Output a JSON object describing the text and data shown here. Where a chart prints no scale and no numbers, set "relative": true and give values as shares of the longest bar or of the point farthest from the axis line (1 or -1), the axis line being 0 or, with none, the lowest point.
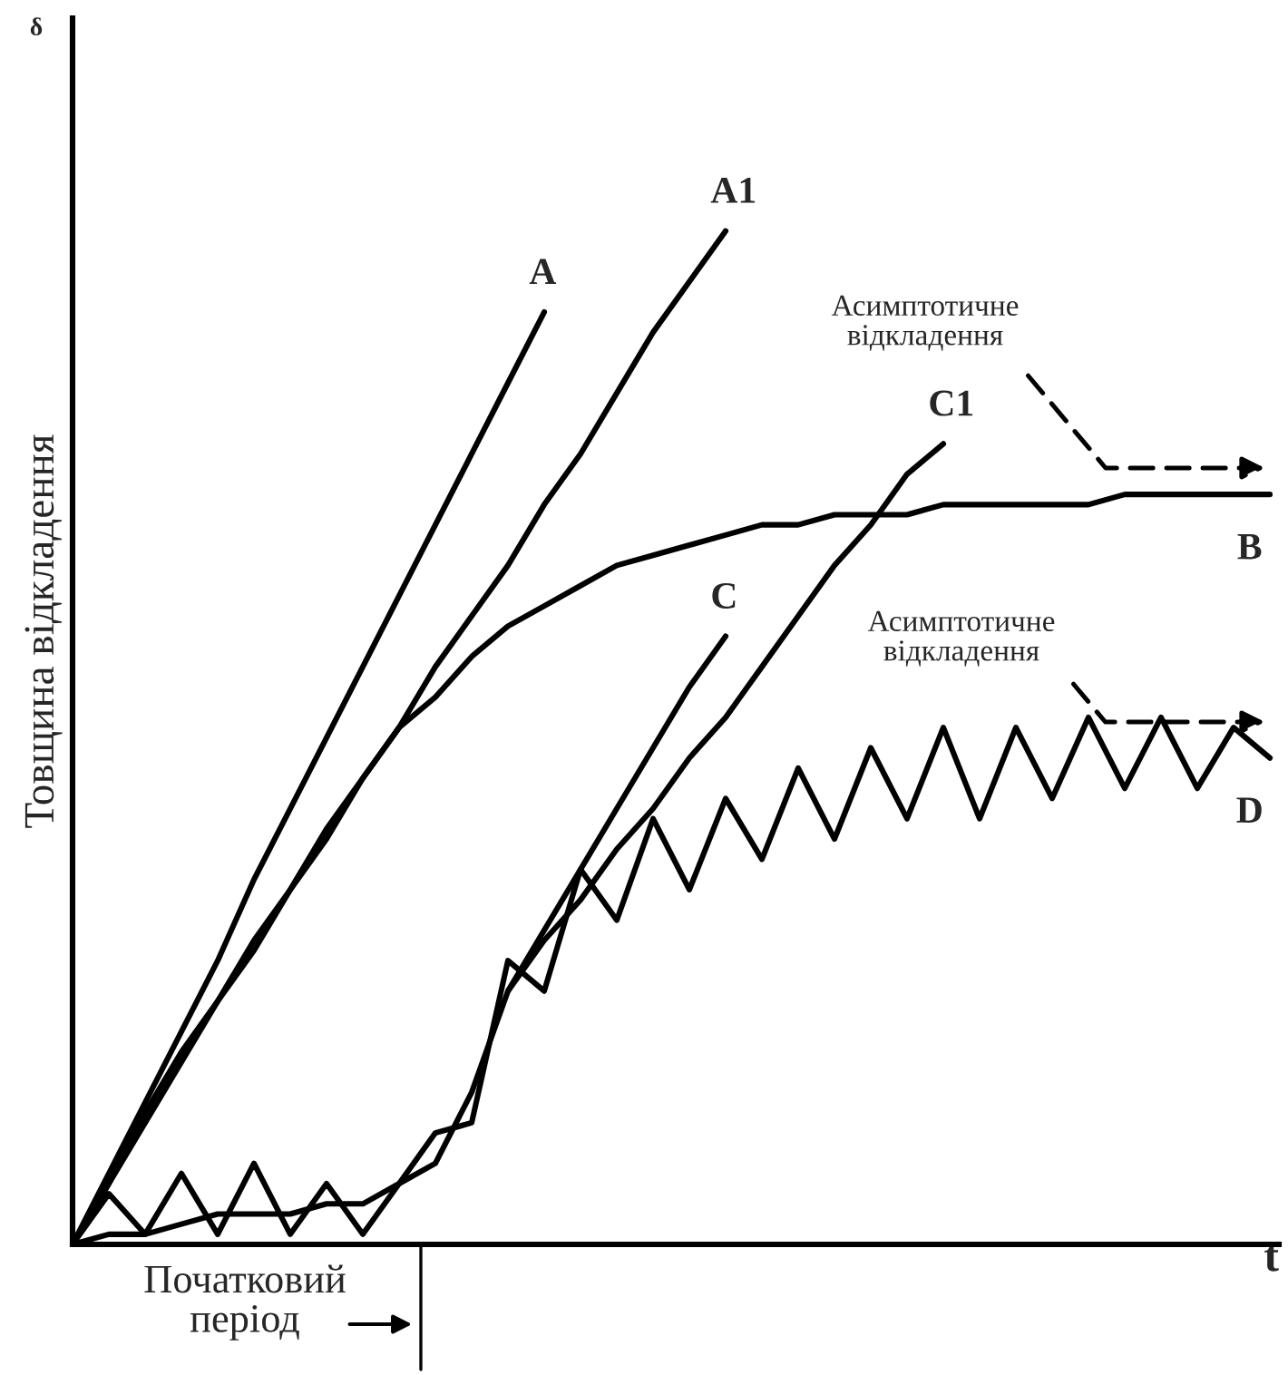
{
  "chart_data": {
    "type": "line",
    "relative": true,
    "ylabel": "Товщина відкладення",
    "xlabel": "t",
    "categories": [
      null,
      null,
      null,
      null,
      null,
      null,
      null,
      null,
      null,
      null,
      null,
      null,
      null,
      null,
      null,
      null,
      null,
      null,
      null,
      null,
      null,
      null,
      null,
      null,
      null,
      null,
      null,
      null,
      null,
      null,
      null,
      null,
      null,
      null
    ],
    "series": [
      {
        "name": "A",
        "color": "#000000",
        "values": [
          0,
          0.07,
          0.14,
          0.21,
          0.28,
          0.36,
          0.43,
          0.5,
          0.57,
          0.64,
          0.71,
          0.78,
          0.85,
          0.92,
          null,
          null,
          null,
          null,
          null,
          null,
          null,
          null,
          null,
          null,
          null,
          null,
          null,
          null,
          null,
          null,
          null,
          null,
          null,
          null
        ]
      },
      {
        "name": "A1",
        "color": "#000000",
        "values": [
          0,
          0.06,
          0.12,
          0.18,
          0.24,
          0.29,
          0.35,
          0.4,
          0.46,
          0.51,
          0.57,
          0.62,
          0.67,
          0.73,
          0.78,
          0.84,
          0.9,
          0.95,
          1.0,
          null,
          null,
          null,
          null,
          null,
          null,
          null,
          null,
          null,
          null,
          null,
          null,
          null,
          null,
          null
        ]
      },
      {
        "name": "B",
        "color": "#000000",
        "values": [
          0,
          0.06,
          0.13,
          0.19,
          0.24,
          0.3,
          0.35,
          0.41,
          0.46,
          0.51,
          0.54,
          0.58,
          0.61,
          0.63,
          0.65,
          0.67,
          0.68,
          0.69,
          0.7,
          0.71,
          0.71,
          0.72,
          0.72,
          0.72,
          0.73,
          0.73,
          0.73,
          0.73,
          0.73,
          0.74,
          0.74,
          0.74,
          0.74,
          0.74
        ]
      },
      {
        "name": "C",
        "color": "#000000",
        "values": [
          null,
          null,
          null,
          null,
          null,
          null,
          null,
          null,
          null,
          null,
          null,
          null,
          0.25,
          0.31,
          0.37,
          0.43,
          0.49,
          0.55,
          0.6,
          null,
          null,
          null,
          null,
          null,
          null,
          null,
          null,
          null,
          null,
          null,
          null,
          null,
          null,
          null
        ]
      },
      {
        "name": "C1",
        "color": "#000000",
        "values": [
          0,
          0.01,
          0.01,
          0.02,
          0.03,
          0.03,
          0.03,
          0.04,
          0.04,
          0.06,
          0.08,
          0.15,
          0.25,
          0.3,
          0.34,
          0.39,
          0.43,
          0.48,
          0.52,
          0.57,
          0.62,
          0.67,
          0.71,
          0.76,
          0.79,
          null,
          null,
          null,
          null,
          null,
          null,
          null,
          null,
          null
        ]
      },
      {
        "name": "D",
        "color": "#000000",
        "values": [
          0,
          0.05,
          0.01,
          0.07,
          0.01,
          0.08,
          0.01,
          0.06,
          0.01,
          0.06,
          0.11,
          0.12,
          0.28,
          0.25,
          0.37,
          0.32,
          0.42,
          0.35,
          0.44,
          0.38,
          0.47,
          0.4,
          0.49,
          0.42,
          0.51,
          0.42,
          0.51,
          0.44,
          0.52,
          0.45,
          0.52,
          0.45,
          0.51,
          0.48
        ]
      }
    ],
    "annotations": [
      "δ",
      "Асимптотичне\nвідкладення",
      "Асимптотичне\nвідкладення",
      "Початковий\nперіод"
    ],
    "legend": false
  }
}
